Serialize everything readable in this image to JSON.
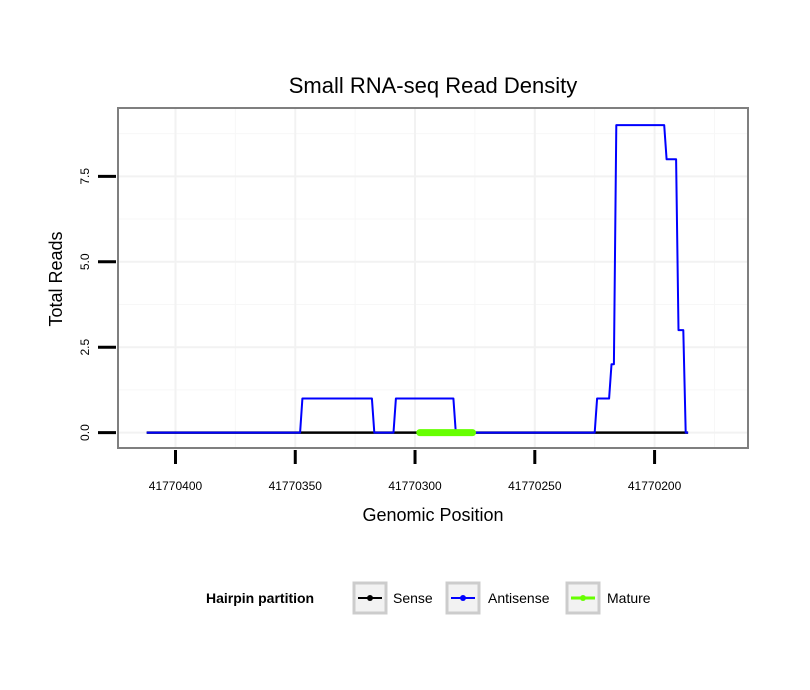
{
  "chart_data": {
    "type": "line",
    "title": "Small RNA-seq Read Density",
    "xlabel": "Genomic Position",
    "ylabel": "Total Reads",
    "x_reversed": true,
    "xlim": [
      41770424,
      41770161
    ],
    "ylim": [
      -0.45,
      9.5
    ],
    "xticks": [
      41770400,
      41770350,
      41770300,
      41770250,
      41770200
    ],
    "xtick_labels": [
      "41770400",
      "41770350",
      "41770300",
      "41770250",
      "41770200"
    ],
    "yticks": [
      0,
      2.5,
      5,
      7.5
    ],
    "ytick_labels": [
      "0.0",
      "2.5",
      "5.0",
      "7.5"
    ],
    "grid": true,
    "legend_position": "bottom",
    "legend_title": "Hairpin partition",
    "series": [
      {
        "name": "Sense",
        "color": "#000000",
        "points": [
          [
            41770412,
            0
          ],
          [
            41770186,
            0
          ]
        ]
      },
      {
        "name": "Antisense",
        "color": "#0000ff",
        "points": [
          [
            41770412,
            0
          ],
          [
            41770348,
            0
          ],
          [
            41770347,
            1
          ],
          [
            41770318,
            1
          ],
          [
            41770317,
            0
          ],
          [
            41770309,
            0
          ],
          [
            41770308,
            1
          ],
          [
            41770284,
            1
          ],
          [
            41770283,
            0
          ],
          [
            41770225,
            0
          ],
          [
            41770224,
            1
          ],
          [
            41770219,
            1
          ],
          [
            41770218,
            2
          ],
          [
            41770217,
            2
          ],
          [
            41770216,
            9
          ],
          [
            41770196,
            9
          ],
          [
            41770195,
            8
          ],
          [
            41770191,
            8
          ],
          [
            41770190,
            3
          ],
          [
            41770188,
            3
          ],
          [
            41770187,
            0
          ],
          [
            41770186,
            0
          ]
        ]
      },
      {
        "name": "Mature",
        "color": "#66ff00",
        "points": [
          [
            41770298,
            0
          ],
          [
            41770276,
            0
          ]
        ]
      }
    ]
  }
}
